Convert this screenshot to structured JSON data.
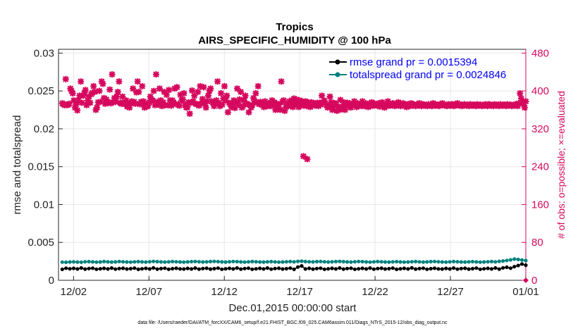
{
  "chart_data": {
    "type": "line",
    "title": "Tropics",
    "subtitle": "AIRS_SPECIFIC_HUMIDITY @ 100 hPa",
    "xlabel": "Dec.01,2015 00:00:00 start",
    "ylabel": "rmse and totalspread",
    "y2label": "# of obs: o=possible; ×=evaluated",
    "footnote": "data file: /Users/raeder/DAI/ATM_forcXX/CAM6_setup/f.e21.FHIST_BGC.f09_025.CAM6assim.011/Diags_NTrS_2015-12/obs_diag_output.nc",
    "xlim": [
      0,
      31
    ],
    "ylim": [
      0,
      0.0305
    ],
    "y2lim": [
      0,
      488
    ],
    "x_ticks": [
      1,
      6,
      11,
      16,
      21,
      26,
      31
    ],
    "x_tick_labels": [
      "12/02",
      "12/07",
      "12/12",
      "12/17",
      "12/22",
      "12/27",
      "01/01"
    ],
    "y_ticks": [
      0,
      0.005,
      0.01,
      0.015,
      0.02,
      0.025,
      0.03
    ],
    "y_tick_labels": [
      "0",
      "0.005",
      "0.01",
      "0.015",
      "0.02",
      "0.025",
      "0.03"
    ],
    "y2_ticks": [
      0,
      80,
      160,
      240,
      320,
      400,
      480
    ],
    "y2_tick_labels": [
      "0",
      "80",
      "160",
      "240",
      "320",
      "400",
      "480"
    ],
    "grid": true,
    "legend_position": "top-right",
    "x_start": 0.25,
    "x_step": 0.25,
    "series": [
      {
        "name": "rmse grand pr = 0.0015394",
        "color": "#000000",
        "axis": "left",
        "marker": "circle",
        "values": [
          0.00145,
          0.0016,
          0.00152,
          0.00158,
          0.0015,
          0.00163,
          0.00148,
          0.00155,
          0.0016,
          0.00146,
          0.00152,
          0.00158,
          0.0015,
          0.00162,
          0.00147,
          0.00155,
          0.00159,
          0.00149,
          0.00153,
          0.00161,
          0.00145,
          0.00152,
          0.00158,
          0.0015,
          0.00164,
          0.00148,
          0.00154,
          0.0016,
          0.00146,
          0.00153,
          0.00159,
          0.00151,
          0.00149,
          0.00157,
          0.0015,
          0.00162,
          0.00147,
          0.00155,
          0.00159,
          0.00148,
          0.00153,
          0.00161,
          0.00146,
          0.00152,
          0.00158,
          0.0015,
          0.00163,
          0.00148,
          0.00155,
          0.0016,
          0.00146,
          0.00152,
          0.00158,
          0.0015,
          0.00162,
          0.00147,
          0.00155,
          0.00159,
          0.00149,
          0.00153,
          0.00161,
          0.00145,
          0.00175,
          0.0019,
          0.0015,
          0.00158,
          0.00148,
          0.00155,
          0.0016,
          0.00146,
          0.00152,
          0.00158,
          0.0015,
          0.00163,
          0.00148,
          0.00155,
          0.0016,
          0.00146,
          0.00152,
          0.00158,
          0.0015,
          0.00162,
          0.00147,
          0.00155,
          0.00159,
          0.00149,
          0.00153,
          0.00161,
          0.00145,
          0.00152,
          0.00158,
          0.0015,
          0.00164,
          0.00148,
          0.00154,
          0.0016,
          0.00146,
          0.00153,
          0.00159,
          0.00151,
          0.00149,
          0.00157,
          0.0015,
          0.00162,
          0.00147,
          0.00155,
          0.00159,
          0.00148,
          0.00153,
          0.00161,
          0.00146,
          0.00152,
          0.00158,
          0.0015,
          0.00163,
          0.00148,
          0.00165,
          0.00172,
          0.0016,
          0.0018,
          0.00195,
          0.00215,
          0.002
        ]
      },
      {
        "name": "totalspread grand pr = 0.0024846",
        "color": "#00827f",
        "axis": "left",
        "marker": "circle",
        "values": [
          0.0024,
          0.00238,
          0.00242,
          0.00244,
          0.00241,
          0.00239,
          0.00245,
          0.00246,
          0.00243,
          0.0024,
          0.00242,
          0.00247,
          0.00244,
          0.00241,
          0.00243,
          0.00248,
          0.00245,
          0.00242,
          0.0024,
          0.00244,
          0.00246,
          0.00243,
          0.00241,
          0.00245,
          0.00249,
          0.00246,
          0.00243,
          0.00241,
          0.00244,
          0.00247,
          0.00245,
          0.00242,
          0.0024,
          0.00243,
          0.00246,
          0.00248,
          0.00245,
          0.00242,
          0.00244,
          0.00247,
          0.00249,
          0.00246,
          0.00243,
          0.00241,
          0.00245,
          0.00248,
          0.00246,
          0.00243,
          0.0024,
          0.00244,
          0.00247,
          0.00245,
          0.00242,
          0.00241,
          0.00244,
          0.00246,
          0.00243,
          0.0024,
          0.00242,
          0.00245,
          0.00247,
          0.00244,
          0.0025,
          0.00252,
          0.00247,
          0.00245,
          0.00243,
          0.00246,
          0.00248,
          0.00245,
          0.00242,
          0.00244,
          0.00247,
          0.00249,
          0.00246,
          0.00243,
          0.00241,
          0.00245,
          0.00248,
          0.00246,
          0.00243,
          0.0024,
          0.00244,
          0.00247,
          0.00245,
          0.00242,
          0.00241,
          0.00244,
          0.00246,
          0.00243,
          0.0024,
          0.00242,
          0.00245,
          0.00247,
          0.00244,
          0.00241,
          0.00243,
          0.00246,
          0.00248,
          0.00245,
          0.00242,
          0.0024,
          0.00244,
          0.00247,
          0.00245,
          0.00242,
          0.00241,
          0.00244,
          0.00246,
          0.00243,
          0.0024,
          0.00242,
          0.00245,
          0.00247,
          0.00244,
          0.0025,
          0.00255,
          0.00262,
          0.0027,
          0.0028,
          0.00275,
          0.00268,
          0.0026
        ]
      },
      {
        "name": "# of obs evaluated",
        "color": "#d6085e",
        "axis": "right",
        "marker": "x",
        "values": [
          374,
          372,
          370,
          425,
          370,
          371,
          373,
          405,
          400,
          395,
          380,
          365,
          372,
          359,
          380,
          390,
          420,
          375,
          390,
          395,
          402,
          370,
          380,
          388,
          375,
          393,
          396,
          410,
          398,
          360,
          365,
          376,
          400,
          377,
          420,
          415,
          385,
          373,
          382,
          377,
          375,
          403,
          374,
          435,
          376,
          385,
          377,
          388,
          398,
          420,
          375,
          373,
          388,
          375,
          372,
          380,
          367,
          370,
          365,
          375,
          378,
          405,
          377,
          373,
          397,
          420,
          398,
          372,
          377,
          410,
          378,
          365,
          370,
          367,
          369,
          376,
          388,
          380,
          380,
          400,
          370,
          435,
          377,
          371,
          405,
          380,
          368,
          376,
          398,
          370,
          392,
          370,
          402,
          380,
          369,
          380,
          376,
          405,
          372,
          408,
          372,
          369,
          392,
          380,
          382,
          395,
          370,
          365,
          366,
          376,
          352,
          375,
          401,
          378,
          390,
          373,
          372,
          398,
          369,
          410,
          373,
          383,
          408,
          374,
          365,
          378,
          390,
          400,
          405,
          378,
          375,
          368,
          373,
          380,
          420,
          375,
          368,
          395,
          371,
          384,
          410,
          380,
          390,
          355,
          375,
          372,
          366,
          370,
          380,
          364,
          376,
          405,
          371,
          382,
          398,
          365,
          368,
          380,
          390,
          373,
          372,
          355,
          370,
          365,
          370,
          385,
          378,
          395,
          375,
          410,
          372,
          377,
          374,
          370,
          366,
          378,
          372,
          368,
          374,
          371,
          368,
          380,
          370,
          376,
          360,
          373,
          365,
          371,
          360,
          420,
          377,
          380,
          358,
          366,
          372,
          368,
          378,
          371,
          380,
          366,
          384,
          373,
          382,
          370,
          366,
          380,
          375,
          378,
          369,
          372,
          378,
          368,
          376,
          371,
          366,
          376,
          372,
          374,
          369,
          372,
          375,
          368,
          375,
          371,
          390,
          376,
          380,
          374,
          370,
          365,
          368,
          388,
          376,
          360,
          370,
          374,
          373,
          358,
          366,
          360,
          381,
          367,
          362,
          376,
          360,
          370,
          375,
          368,
          374,
          365,
          372,
          370,
          378,
          373,
          366,
          374,
          369,
          372,
          368,
          378,
          370,
          368,
          374,
          371,
          366,
          372,
          368,
          376,
          374,
          369,
          372,
          370,
          369,
          374,
          367,
          373,
          376,
          370,
          365,
          372,
          368,
          378,
          372,
          369,
          370,
          374,
          373,
          368,
          370,
          372,
          376,
          370,
          368,
          371,
          374,
          372,
          369,
          366,
          372,
          370,
          368,
          374,
          372,
          369,
          371,
          368,
          372,
          369,
          374,
          370,
          368,
          372,
          371,
          369,
          370,
          368,
          372,
          369,
          370,
          368,
          374,
          372,
          369,
          370,
          371,
          368,
          370,
          372,
          374,
          371,
          369,
          370,
          368,
          372,
          370,
          369,
          372,
          371,
          368,
          370,
          372,
          374,
          370,
          369,
          371,
          368,
          370,
          372,
          370,
          369,
          371,
          368,
          372,
          370,
          369,
          371,
          370,
          368,
          372,
          369,
          370,
          371,
          368,
          370,
          369,
          372,
          370,
          368,
          372,
          371,
          369,
          370,
          368,
          372,
          370,
          369,
          371,
          368,
          372,
          370,
          369,
          371,
          370,
          368,
          372,
          369,
          370,
          371,
          368,
          370,
          369,
          372,
          370,
          368,
          374,
          395,
          384,
          373,
          375,
          365,
          378
        ]
      }
    ],
    "anomaly_points": [
      {
        "x": 16.25,
        "y2": 262
      },
      {
        "x": 16.5,
        "y2": 256
      }
    ],
    "legend": [
      {
        "label": "rmse grand pr = 0.0015394",
        "color": "#000000"
      },
      {
        "label": "totalspread grand pr = 0.0024846",
        "color": "#00827f"
      }
    ]
  }
}
